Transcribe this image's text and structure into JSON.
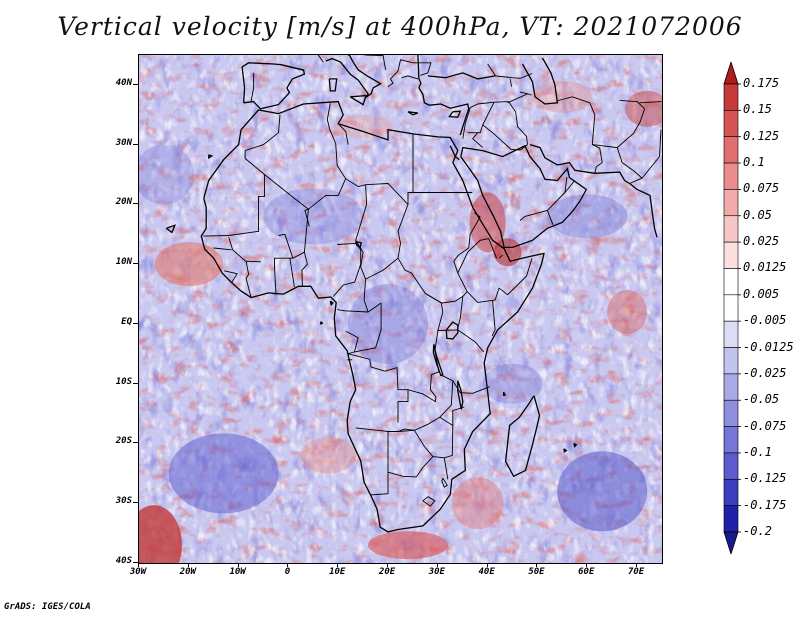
{
  "title": "Vertical velocity [m/s] at 400hPa, VT: 2021072006",
  "footer": "GrADS: IGES/COLA",
  "map": {
    "lat_labels": [
      "40N",
      "30N",
      "20N",
      "10N",
      "EQ",
      "10S",
      "20S",
      "30S",
      "40S"
    ],
    "lat_values": [
      40,
      30,
      20,
      10,
      0,
      -10,
      -20,
      -30,
      -40
    ],
    "lon_labels": [
      "30W",
      "20W",
      "10W",
      "0",
      "10E",
      "20E",
      "30E",
      "40E",
      "50E",
      "60E",
      "70E"
    ],
    "lon_values": [
      -30,
      -20,
      -10,
      0,
      10,
      20,
      30,
      40,
      50,
      60,
      70
    ],
    "lat_range": [
      -40,
      45
    ],
    "lon_range": [
      -30,
      75
    ]
  },
  "legend": {
    "labels": [
      "0.175",
      "0.15",
      "0.125",
      "0.1",
      "0.075",
      "0.05",
      "0.025",
      "0.0125",
      "0.005",
      "-0.005",
      "-0.0125",
      "-0.025",
      "-0.05",
      "-0.075",
      "-0.1",
      "-0.125",
      "-0.175",
      "-0.2"
    ],
    "colors": [
      "#b01c1c",
      "#c73a3a",
      "#d75454",
      "#e26f6f",
      "#ec8d8d",
      "#f2aaaa",
      "#f7c6c6",
      "#fbdfdf",
      "#ffffff",
      "#ffffff",
      "#dcdcf6",
      "#c3c3f0",
      "#a9a9e8",
      "#8f8fe0",
      "#7676d6",
      "#5c5ccc",
      "#3d3dbf",
      "#2020a8",
      "#1a1a8f"
    ]
  }
}
